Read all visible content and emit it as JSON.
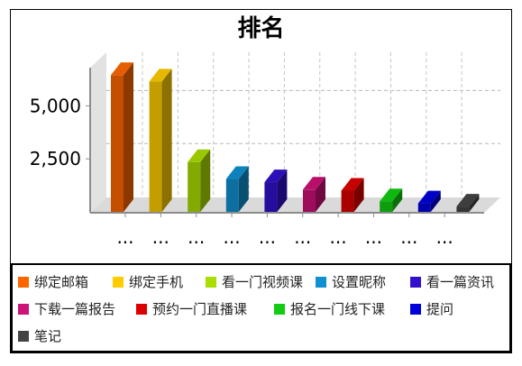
{
  "chart_data": {
    "type": "bar",
    "three_d": true,
    "title": "排名",
    "categories": [
      "绑定邮箱",
      "绑定手机",
      "看一门视频课",
      "设置昵称",
      "看一篇资讯",
      "下载一篇报告",
      "预约一门直播课",
      "报名一门线下课",
      "提问",
      "笔记"
    ],
    "x_tick_labels": [
      "...",
      "...",
      "...",
      "...",
      "...",
      "...",
      "...",
      "...",
      "...",
      "..."
    ],
    "values": [
      6450,
      6150,
      2350,
      1550,
      1400,
      1050,
      1000,
      500,
      400,
      250
    ],
    "colors": [
      "#ff6600",
      "#ffcc00",
      "#aadd00",
      "#1090d0",
      "#3311cc",
      "#cc1177",
      "#dd0000",
      "#11cc11",
      "#0000dd",
      "#444444"
    ],
    "y_ticks": [
      2500,
      5000
    ],
    "y_tick_labels": [
      "2,500",
      "5,000"
    ],
    "ylim": [
      0,
      6800
    ],
    "grid": true,
    "legend": "bottom"
  }
}
